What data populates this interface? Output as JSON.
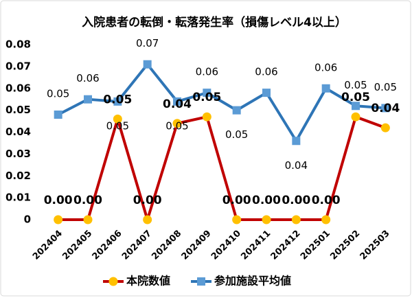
{
  "chart_data": {
    "type": "line",
    "title": "入院患者の転倒・転落発生率（損傷レベル4以上）",
    "categories": [
      "202404",
      "202405",
      "202406",
      "202407",
      "202408",
      "202409",
      "202410",
      "202411",
      "202412",
      "202501",
      "202502",
      "202503"
    ],
    "series": [
      {
        "name": "本院数値",
        "color": "#c00000",
        "marker_color": "#ffc000",
        "marker": "circle",
        "values": [
          0,
          0,
          0.046,
          0,
          0.044,
          0.047,
          0,
          0,
          0,
          0,
          0.047,
          0.042
        ],
        "value_labels": [
          "0.00",
          "0.00",
          "0.05",
          "0.00",
          "0.04",
          "0.05",
          "0.00",
          "0.00",
          "0.00",
          "0.00",
          "0.05",
          "0.04"
        ]
      },
      {
        "name": "参加施設平均値",
        "color": "#2e75b6",
        "marker_color": "#5b9bd5",
        "marker": "square",
        "values": [
          0.048,
          0.055,
          0.054,
          0.071,
          0.054,
          0.058,
          0.05,
          0.058,
          0.036,
          0.06,
          0.052,
          0.051
        ],
        "value_labels": [
          "0.05",
          "0.06",
          "0.05",
          "0.07",
          "0.05",
          "0.06",
          "0.05",
          "0.06",
          "0.04",
          "0.06",
          "0.05",
          "0.05"
        ]
      }
    ],
    "ylim": [
      0,
      0.08
    ],
    "yticks": [
      0,
      0.01,
      0.02,
      0.03,
      0.04,
      0.05,
      0.06,
      0.07,
      0.08
    ],
    "grid": false,
    "legend": "bottom"
  }
}
